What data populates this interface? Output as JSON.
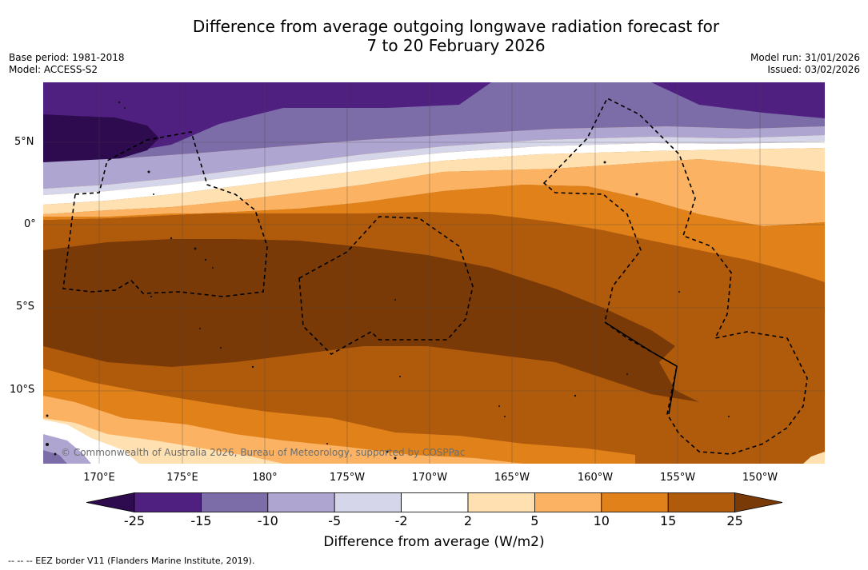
{
  "title_line1": "Difference from average outgoing longwave radiation forecast for",
  "title_line2": "7 to 20 February 2026",
  "base_period": "Base period: 1981-2018",
  "model": "Model: ACCESS-S2",
  "model_run": "Model run: 31/01/2026",
  "issued": "Issued: 03/02/2026",
  "credit": "© Commonwealth of Australia 2026, Bureau of Meteorology, supported by COSPPac",
  "eez_note": "--  --  -- EEZ border V11 (Flanders Marine Institute, 2019).",
  "lat_labels": [
    "5°N",
    "0°",
    "5°S",
    "10°S"
  ],
  "lon_labels": [
    "170°E",
    "175°E",
    "180°",
    "175°W",
    "170°W",
    "165°W",
    "160°W",
    "155°W",
    "150°W"
  ],
  "colorbar": {
    "label": "Difference from average (W/m2)",
    "ticks": [
      "-25",
      "-15",
      "-10",
      "-5",
      "-2",
      "2",
      "5",
      "10",
      "15",
      "25"
    ],
    "colors": [
      "#2e0a4f",
      "#4f2080",
      "#7c6da8",
      "#aea6d0",
      "#d6d6ea",
      "#ffffff",
      "#ffe0b0",
      "#fbb363",
      "#e08119",
      "#b05b0b",
      "#7a3a08"
    ]
  }
}
